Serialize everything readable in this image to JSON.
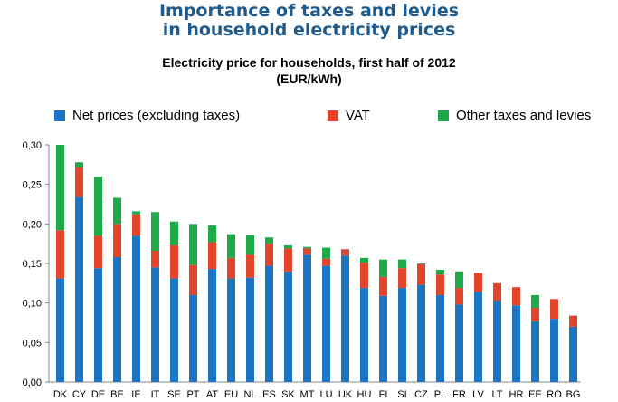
{
  "header": {
    "title_line1": "Importance of taxes and levies",
    "title_line2": "in household electricity prices",
    "subtitle_line1": "Electricity price for households, first half of 2012",
    "subtitle_line2": "(EUR/kWh)"
  },
  "colors": {
    "net": "#1a75c4",
    "vat": "#e3452b",
    "other": "#1faa4a",
    "title": "#1f5a8c"
  },
  "legend": {
    "net": "Net prices (excluding taxes)",
    "vat": "VAT",
    "other": "Other taxes and levies"
  },
  "chart_data": {
    "type": "bar",
    "stacked": true,
    "title": "Electricity price for households, first half of 2012",
    "ylabel": "(EUR/kWh)",
    "ylim": [
      0,
      0.3
    ],
    "yticks": [
      "0,00",
      "0,05",
      "0,10",
      "0,15",
      "0,20",
      "0,25",
      "0,30"
    ],
    "categories": [
      "DK",
      "CY",
      "DE",
      "BE",
      "IE",
      "IT",
      "SE",
      "PT",
      "AT",
      "EU",
      "NL",
      "ES",
      "SK",
      "MT",
      "LU",
      "UK",
      "HU",
      "FI",
      "SI",
      "CZ",
      "PL",
      "FR",
      "LV",
      "LT",
      "HR",
      "EE",
      "RO",
      "BG"
    ],
    "series": [
      {
        "name": "Net prices (excluding taxes)",
        "key": "net",
        "values": [
          0.131,
          0.234,
          0.144,
          0.158,
          0.185,
          0.145,
          0.131,
          0.11,
          0.143,
          0.131,
          0.132,
          0.147,
          0.14,
          0.161,
          0.147,
          0.16,
          0.119,
          0.109,
          0.119,
          0.123,
          0.11,
          0.098,
          0.114,
          0.103,
          0.097,
          0.077,
          0.08,
          0.07
        ]
      },
      {
        "name": "VAT",
        "key": "vat",
        "values": [
          0.061,
          0.038,
          0.041,
          0.042,
          0.027,
          0.021,
          0.042,
          0.038,
          0.034,
          0.026,
          0.029,
          0.028,
          0.029,
          0.008,
          0.009,
          0.008,
          0.032,
          0.024,
          0.025,
          0.026,
          0.026,
          0.021,
          0.024,
          0.022,
          0.023,
          0.017,
          0.025,
          0.014
        ]
      },
      {
        "name": "Other taxes and levies",
        "key": "other",
        "values": [
          0.108,
          0.006,
          0.075,
          0.033,
          0.004,
          0.049,
          0.03,
          0.052,
          0.021,
          0.03,
          0.025,
          0.008,
          0.004,
          0.002,
          0.014,
          0.0,
          0.006,
          0.022,
          0.011,
          0.001,
          0.006,
          0.021,
          0.0,
          0.0,
          0.0,
          0.016,
          0.0,
          0.0
        ]
      }
    ]
  }
}
